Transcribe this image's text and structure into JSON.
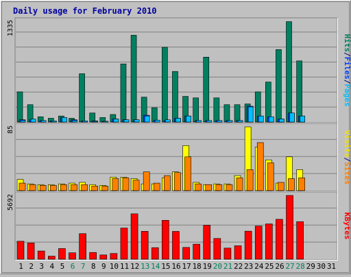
{
  "chart_data": {
    "type": "bar",
    "title": "Daily usage for February 2010",
    "categories": [
      "1",
      "2",
      "3",
      "4",
      "5",
      "6",
      "7",
      "8",
      "9",
      "10",
      "11",
      "12",
      "13",
      "14",
      "15",
      "16",
      "17",
      "18",
      "19",
      "20",
      "21",
      "22",
      "23",
      "24",
      "25",
      "26",
      "27",
      "28",
      "29",
      "30",
      "31"
    ],
    "weekend_days": [
      "6",
      "7",
      "13",
      "14",
      "20",
      "21",
      "27",
      "28"
    ],
    "panels": [
      {
        "id": "top",
        "ymax_label": "1335",
        "ymax": 1335,
        "axis_labels": [
          {
            "text": "Hits",
            "color": "#00805c"
          },
          {
            "text": "/",
            "color": "#000080"
          },
          {
            "text": "Files",
            "color": "#0040ff"
          },
          {
            "text": "/",
            "color": "#000080"
          },
          {
            "text": "Pages",
            "color": "#00c0ff"
          }
        ],
        "series": [
          {
            "name": "Hits",
            "color": "#008060",
            "values": [
              400,
              230,
              70,
              50,
              80,
              50,
              640,
              120,
              60,
              100,
              770,
              1150,
              330,
              190,
              990,
              670,
              340,
              320,
              860,
              320,
              230,
              230,
              240,
              400,
              530,
              960,
              1330,
              810,
              0,
              0,
              0
            ]
          },
          {
            "name": "Files",
            "color": "#0040ff",
            "values": [
              30,
              30,
              20,
              15,
              60,
              30,
              15,
              15,
              10,
              40,
              30,
              30,
              90,
              25,
              20,
              50,
              80,
              20,
              20,
              20,
              20,
              20,
              210,
              80,
              70,
              40,
              120,
              80,
              0,
              0,
              0
            ]
          },
          {
            "name": "Pages",
            "color": "#00c0ff",
            "values": [
              20,
              40,
              20,
              15,
              60,
              20,
              15,
              10,
              10,
              40,
              30,
              30,
              80,
              25,
              30,
              50,
              80,
              20,
              20,
              20,
              20,
              20,
              200,
              80,
              70,
              40,
              120,
              80,
              0,
              0,
              0
            ]
          }
        ]
      },
      {
        "id": "middle",
        "ymax_label": "85",
        "ymax": 85,
        "axis_labels": [
          {
            "text": "Visits",
            "color": "#f0e000"
          },
          {
            "text": "/",
            "color": "#000080"
          },
          {
            "text": "Sites",
            "color": "#ff8000"
          }
        ],
        "series": [
          {
            "name": "Visits",
            "color": "#ffff00",
            "values": [
              15,
              9,
              8,
              8,
              9,
              10,
              11,
              8,
              7,
              18,
              18,
              16,
              9,
              9,
              17,
              25,
              60,
              11,
              8,
              9,
              9,
              20,
              85,
              58,
              41,
              10,
              45,
              28,
              0,
              0,
              0
            ]
          },
          {
            "name": "Sites",
            "color": "#ff8000",
            "values": [
              10,
              8,
              7,
              7,
              8,
              8,
              8,
              6,
              6,
              16,
              17,
              14,
              25,
              10,
              20,
              24,
              45,
              9,
              8,
              8,
              8,
              17,
              28,
              64,
              37,
              11,
              16,
              17,
              0,
              0,
              0
            ]
          }
        ]
      },
      {
        "id": "bottom",
        "ymax_label": "5692",
        "ymax": 5692,
        "axis_labels": [
          {
            "text": "KBytes",
            "color": "#ff0000"
          }
        ],
        "series": [
          {
            "name": "KBytes",
            "color": "#ff0000",
            "values": [
              1600,
              1450,
              730,
              270,
              950,
              570,
              2280,
              600,
              380,
              510,
              2780,
              4050,
              2490,
              1030,
              3470,
              2480,
              1050,
              1340,
              3030,
              1850,
              990,
              1200,
              2500,
              2960,
              3150,
              3560,
              5692,
              3350,
              0,
              0,
              0
            ]
          }
        ]
      }
    ]
  }
}
